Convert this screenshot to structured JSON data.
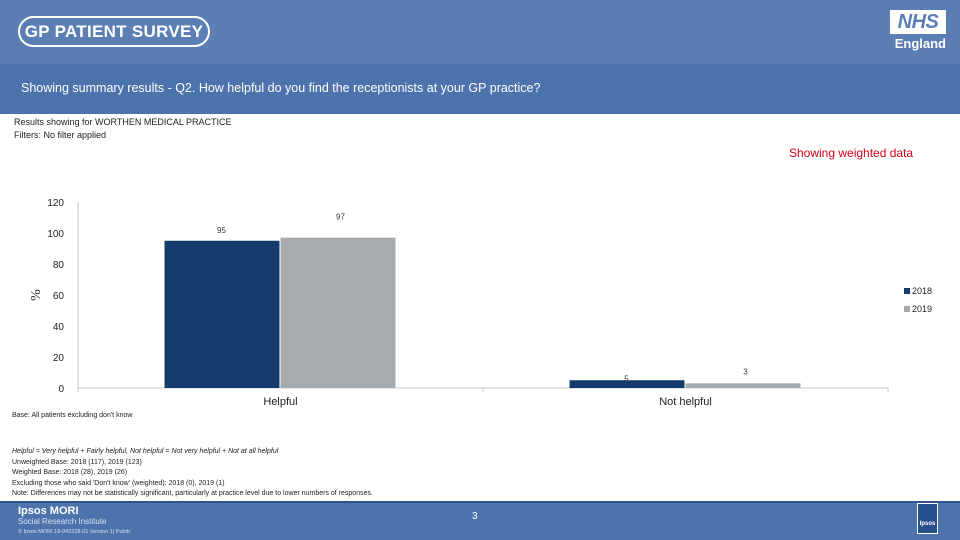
{
  "header": {
    "survey_logo_text": "GP PATIENT SURVEY",
    "nhs_logo": "NHS",
    "nhs_subtext": "England"
  },
  "question": "Showing summary results - Q2.  How helpful do you find the receptionists at your GP practice?",
  "subheader": {
    "results_for": "Results showing for WORTHEN MEDICAL PRACTICE",
    "filters": "Filters: No filter applied"
  },
  "weighted_note": "Showing weighted data",
  "colors": {
    "header_bg": "#5b7fb5",
    "series_2018": "#133c6c",
    "series_2019": "#a6abb0",
    "weighted_text": "#d0021b"
  },
  "chart_data": {
    "type": "bar",
    "categories": [
      "Helpful",
      "Not helpful"
    ],
    "series": [
      {
        "name": "2018",
        "values": [
          95,
          5
        ],
        "color": "#133c6c"
      },
      {
        "name": "2019",
        "values": [
          97,
          3
        ],
        "color": "#a6abb0"
      }
    ],
    "ylabel": "%",
    "ylim": [
      0,
      120
    ],
    "yticks": [
      0,
      20,
      40,
      60,
      80,
      100,
      120
    ],
    "legend_position": "right",
    "grid": false
  },
  "base_note": "Base: All patients excluding don't know",
  "notes": [
    "Helpful = Very helpful + Fairly helpful, Not helpful = Not very helpful + Not at all helpful",
    "Unweighted Base: 2018 (117), 2019 (123)",
    "Weighted Base: 2018 (28), 2019 (26)",
    "Excluding those who said 'Don't know' (weighted): 2018 (0), 2019 (1)",
    "Note: Differences may not be statistically significant, particularly at practice level due to lower numbers of responses."
  ],
  "footer": {
    "company": "Ipsos MORI",
    "division": "Social Research Institute",
    "copyright": "© Ipsos MORI      18-042228-01 Version 1| Public",
    "page_number": "3",
    "badge": "Ipsos"
  }
}
